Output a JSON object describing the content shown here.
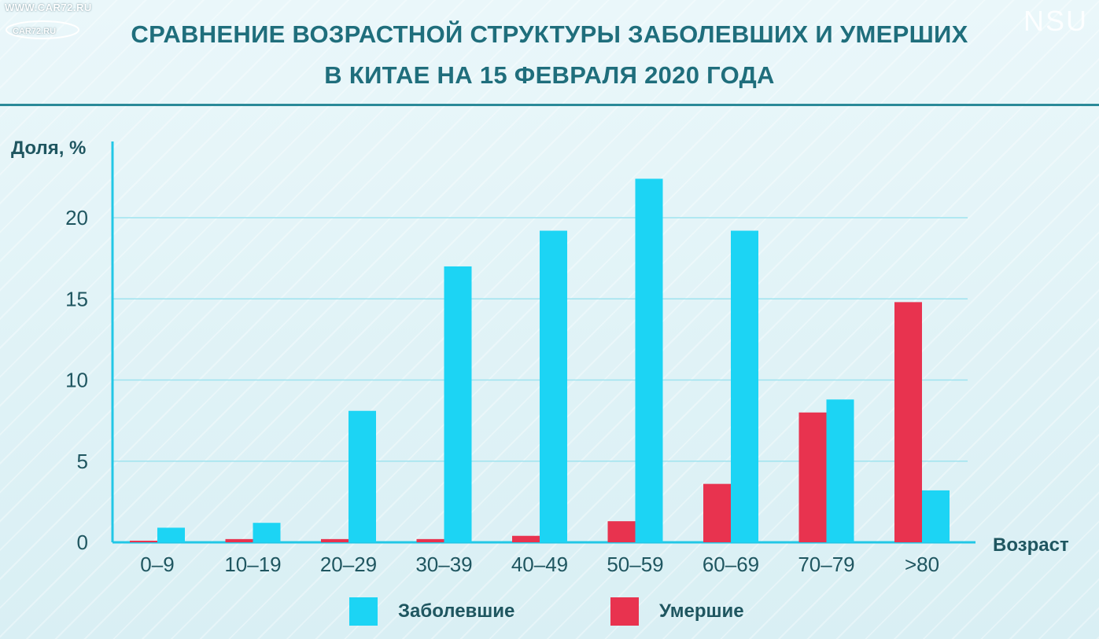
{
  "watermark": {
    "site": "WWW.CAR72.RU",
    "logo_text": "CAR72.RU"
  },
  "corner_mark": "NSU",
  "title_lines": [
    "СРАВНЕНИЕ ВОЗРАСТНОЙ СТРУКТУРЫ ЗАБОЛЕВШИХ И УМЕРШИХ",
    "В КИТАЕ НА 15 ФЕВРАЛЯ 2020 ГОДА"
  ],
  "colors": {
    "infected": "#1cd4f4",
    "deceased": "#e8334f",
    "axis": "#22c7e6",
    "text": "#1f5660"
  },
  "chart_data": {
    "type": "bar",
    "title": "СРАВНЕНИЕ ВОЗРАСТНОЙ СТРУКТУРЫ ЗАБОЛЕВШИХ И УМЕРШИХ В КИТАЕ НА 15 ФЕВРАЛЯ 2020 ГОДА",
    "xlabel": "Возраст",
    "ylabel": "Доля, %",
    "ylim": [
      0,
      25
    ],
    "yticks": [
      0,
      5,
      10,
      15,
      20
    ],
    "grid": true,
    "legend_position": "bottom",
    "categories": [
      "0–9",
      "10–19",
      "20–29",
      "30–39",
      "40–49",
      "50–59",
      "60–69",
      "70–79",
      ">80"
    ],
    "series": [
      {
        "name": "Умершие",
        "color": "#e8334f",
        "values": [
          0.1,
          0.2,
          0.2,
          0.2,
          0.4,
          1.3,
          3.6,
          8.0,
          14.8
        ]
      },
      {
        "name": "Заболевшие",
        "color": "#1cd4f4",
        "values": [
          0.9,
          1.2,
          8.1,
          17.0,
          19.2,
          22.4,
          19.2,
          8.8,
          3.2
        ]
      }
    ]
  },
  "legend": [
    {
      "label": "Заболевшие",
      "color": "#1cd4f4"
    },
    {
      "label": "Умершие",
      "color": "#e8334f"
    }
  ]
}
